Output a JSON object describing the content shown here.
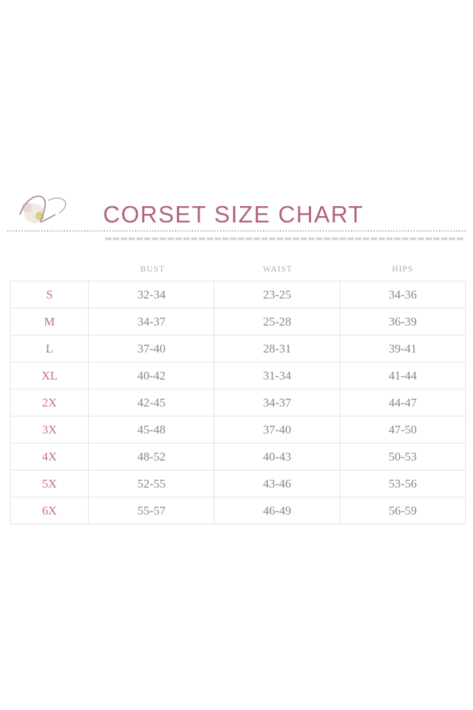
{
  "title": "CORSET SIZE CHART",
  "columns": [
    "BUST",
    "WAIST",
    "HIPS"
  ],
  "rows": [
    {
      "size": "S",
      "bust": "32-34",
      "waist": "23-25",
      "hips": "34-36"
    },
    {
      "size": "M",
      "bust": "34-37",
      "waist": "25-28",
      "hips": "36-39"
    },
    {
      "size": "L",
      "bust": "37-40",
      "waist": "28-31",
      "hips": "39-41"
    },
    {
      "size": "XL",
      "bust": "40-42",
      "waist": "31-34",
      "hips": "41-44"
    },
    {
      "size": "2X",
      "bust": "42-45",
      "waist": "34-37",
      "hips": "44-47"
    },
    {
      "size": "3X",
      "bust": "45-48",
      "waist": "37-40",
      "hips": "47-50"
    },
    {
      "size": "4X",
      "bust": "48-52",
      "waist": "40-43",
      "hips": "50-53"
    },
    {
      "size": "5X",
      "bust": "52-55",
      "waist": "43-46",
      "hips": "53-56"
    },
    {
      "size": "6X",
      "bust": "55-57",
      "waist": "46-49",
      "hips": "56-59"
    }
  ],
  "colors": {
    "title": "#b0667a",
    "size_labels": "#c46d85",
    "values": "#8a8587",
    "grid": "#e6e3e4"
  }
}
